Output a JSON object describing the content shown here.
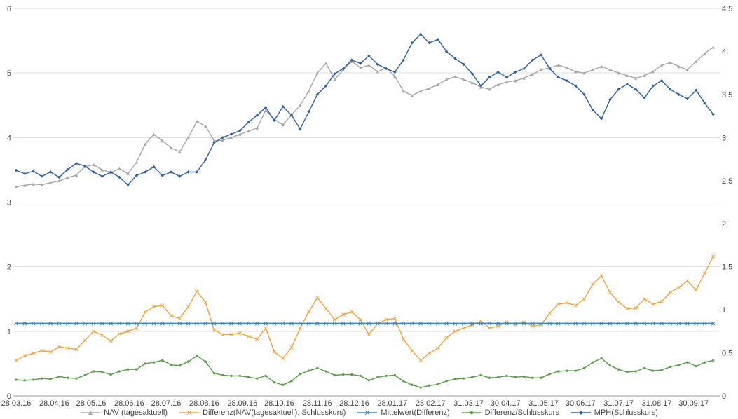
{
  "page": {
    "background": "#ffffff"
  },
  "chart_data": {
    "type": "line",
    "title": "",
    "grid": "horizontal",
    "legend_position": "bottom-center",
    "x_axis": {
      "start_date": "2016-03-28",
      "interval_days": 7,
      "domain_days": 570,
      "ticks": [
        {
          "label": "28.03.16",
          "day": 0
        },
        {
          "label": "28.04.16",
          "day": 31
        },
        {
          "label": "28.05.16",
          "day": 61
        },
        {
          "label": "28.06.16",
          "day": 92
        },
        {
          "label": "28.07.16",
          "day": 122
        },
        {
          "label": "28.08.16",
          "day": 153
        },
        {
          "label": "28.09.16",
          "day": 184
        },
        {
          "label": "28.10.16",
          "day": 214
        },
        {
          "label": "28.11.16",
          "day": 245
        },
        {
          "label": "28.12.16",
          "day": 275
        },
        {
          "label": "28.01.17",
          "day": 306
        },
        {
          "label": "28.02.17",
          "day": 337
        },
        {
          "label": "31.03.17",
          "day": 368
        },
        {
          "label": "30.04.17",
          "day": 398
        },
        {
          "label": "31.05.17",
          "day": 429
        },
        {
          "label": "30.06.17",
          "day": 459
        },
        {
          "label": "31.07.17",
          "day": 490
        },
        {
          "label": "31.08.17",
          "day": 521
        },
        {
          "label": "30.09.17",
          "day": 551
        }
      ]
    },
    "left_axis": {
      "min": 0,
      "max": 6,
      "ticks": [
        {
          "v": 0,
          "label": "0"
        },
        {
          "v": 1,
          "label": "1"
        },
        {
          "v": 2,
          "label": "2"
        },
        {
          "v": 3,
          "label": "3"
        },
        {
          "v": 4,
          "label": "4"
        },
        {
          "v": 5,
          "label": "5"
        },
        {
          "v": 6,
          "label": "6"
        }
      ]
    },
    "right_axis": {
      "min": 0,
      "max": 4.5,
      "ticks": [
        {
          "v": 0,
          "label": "0"
        },
        {
          "v": 0.5,
          "label": "0,5"
        },
        {
          "v": 1,
          "label": "1"
        },
        {
          "v": 1.5,
          "label": "1,5"
        },
        {
          "v": 2,
          "label": "2"
        },
        {
          "v": 2.5,
          "label": "2,5"
        },
        {
          "v": 3,
          "label": "3"
        },
        {
          "v": 3.5,
          "label": "3,5"
        },
        {
          "v": 4,
          "label": "4"
        },
        {
          "v": 4.5,
          "label": "4,5"
        }
      ]
    },
    "series": [
      {
        "name": "NAV (tagesaktuell)",
        "color": "#a6a6a6",
        "axis": "left",
        "marker": "triangle",
        "values": [
          3.24,
          3.26,
          3.28,
          3.27,
          3.3,
          3.33,
          3.38,
          3.42,
          3.55,
          3.58,
          3.5,
          3.46,
          3.52,
          3.44,
          3.62,
          3.9,
          4.05,
          3.95,
          3.84,
          3.78,
          4.0,
          4.25,
          4.18,
          3.95,
          3.96,
          4.0,
          4.05,
          4.1,
          4.15,
          4.42,
          4.28,
          4.2,
          4.35,
          4.5,
          4.72,
          5.0,
          5.15,
          4.9,
          5.05,
          5.18,
          5.08,
          5.12,
          5.02,
          5.08,
          4.95,
          4.72,
          4.65,
          4.72,
          4.76,
          4.82,
          4.9,
          4.94,
          4.9,
          4.85,
          4.78,
          4.75,
          4.82,
          4.86,
          4.88,
          4.92,
          4.98,
          5.05,
          5.08,
          5.12,
          5.08,
          5.02,
          5.0,
          5.05,
          5.1,
          5.05,
          5.0,
          4.96,
          4.92,
          4.96,
          5.02,
          5.12,
          5.16,
          5.1,
          5.05,
          5.18,
          5.3,
          5.4
        ]
      },
      {
        "name": "Differenz(NAV(tagesaktuell), Schlusskurs)",
        "color": "#f0a23c",
        "axis": "left",
        "marker": "x",
        "values": [
          0.55,
          0.62,
          0.66,
          0.7,
          0.68,
          0.76,
          0.74,
          0.72,
          0.86,
          1.0,
          0.94,
          0.85,
          0.96,
          1.0,
          1.05,
          1.3,
          1.38,
          1.4,
          1.24,
          1.2,
          1.38,
          1.62,
          1.45,
          1.02,
          0.95,
          0.95,
          0.97,
          0.92,
          0.88,
          1.05,
          0.68,
          0.58,
          0.75,
          1.05,
          1.3,
          1.52,
          1.35,
          1.18,
          1.26,
          1.3,
          1.18,
          0.95,
          1.12,
          1.18,
          1.2,
          0.88,
          0.7,
          0.55,
          0.66,
          0.74,
          0.9,
          1.0,
          1.05,
          1.1,
          1.16,
          1.05,
          1.08,
          1.14,
          1.1,
          1.14,
          1.08,
          1.1,
          1.28,
          1.42,
          1.44,
          1.4,
          1.5,
          1.73,
          1.86,
          1.6,
          1.45,
          1.35,
          1.36,
          1.5,
          1.42,
          1.46,
          1.6,
          1.68,
          1.78,
          1.64,
          1.9,
          2.16
        ]
      },
      {
        "name": "Mittelwert(Differenz)",
        "color": "#3f86b8",
        "axis": "left",
        "marker": "x",
        "constant": 1.12
      },
      {
        "name": "Differenz/Schlusskurs",
        "color": "#579b46",
        "axis": "left",
        "marker": "circle",
        "values": [
          0.25,
          0.24,
          0.25,
          0.27,
          0.26,
          0.3,
          0.28,
          0.27,
          0.32,
          0.38,
          0.37,
          0.33,
          0.38,
          0.41,
          0.41,
          0.5,
          0.52,
          0.55,
          0.48,
          0.47,
          0.53,
          0.62,
          0.53,
          0.35,
          0.32,
          0.31,
          0.31,
          0.29,
          0.27,
          0.31,
          0.21,
          0.17,
          0.23,
          0.34,
          0.39,
          0.43,
          0.38,
          0.32,
          0.33,
          0.33,
          0.31,
          0.24,
          0.29,
          0.31,
          0.32,
          0.23,
          0.17,
          0.13,
          0.16,
          0.18,
          0.23,
          0.26,
          0.27,
          0.29,
          0.32,
          0.28,
          0.29,
          0.31,
          0.29,
          0.3,
          0.28,
          0.28,
          0.34,
          0.38,
          0.39,
          0.39,
          0.43,
          0.52,
          0.58,
          0.47,
          0.41,
          0.37,
          0.38,
          0.43,
          0.39,
          0.4,
          0.45,
          0.48,
          0.52,
          0.46,
          0.52,
          0.55
        ]
      },
      {
        "name": "MPH(Schlusskurs)",
        "color": "#2d5f9e",
        "axis": "right",
        "marker": "diamond",
        "values": [
          2.62,
          2.58,
          2.61,
          2.55,
          2.6,
          2.54,
          2.63,
          2.7,
          2.67,
          2.6,
          2.55,
          2.6,
          2.54,
          2.45,
          2.56,
          2.6,
          2.66,
          2.56,
          2.6,
          2.55,
          2.6,
          2.6,
          2.74,
          2.94,
          3.0,
          3.04,
          3.08,
          3.18,
          3.26,
          3.35,
          3.2,
          3.36,
          3.26,
          3.1,
          3.3,
          3.5,
          3.6,
          3.74,
          3.8,
          3.9,
          3.86,
          3.95,
          3.85,
          3.8,
          3.76,
          3.9,
          4.1,
          4.2,
          4.1,
          4.14,
          4.0,
          3.92,
          3.85,
          3.74,
          3.6,
          3.7,
          3.76,
          3.7,
          3.76,
          3.8,
          3.9,
          3.96,
          3.8,
          3.7,
          3.66,
          3.6,
          3.5,
          3.32,
          3.22,
          3.44,
          3.56,
          3.62,
          3.56,
          3.46,
          3.6,
          3.66,
          3.56,
          3.5,
          3.45,
          3.55,
          3.4,
          3.27
        ]
      }
    ]
  }
}
